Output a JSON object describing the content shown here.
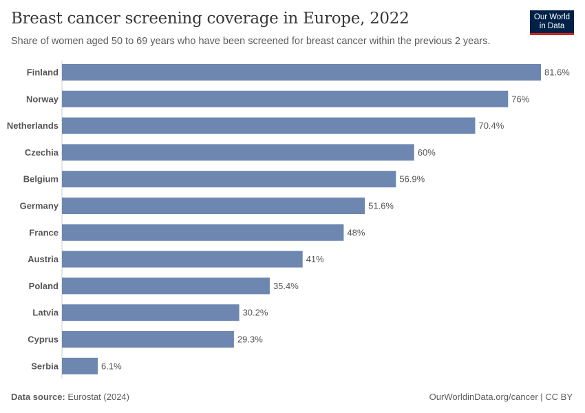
{
  "title": "Breast cancer screening coverage in Europe, 2022",
  "subtitle": "Share of women aged 50 to 69 years who have been screened for breast cancer within the previous 2 years.",
  "logo": {
    "line1": "Our World",
    "line2": "in Data"
  },
  "footer": {
    "source_label": "Data source:",
    "source": "Eurostat (2024)",
    "link": "OurWorldinData.org/cancer | CC BY"
  },
  "colors": {
    "bar": "#6d87b0",
    "logo_bg": "#002147",
    "logo_accent": "#ce261e"
  },
  "chart_data": {
    "type": "bar",
    "orientation": "horizontal",
    "categories": [
      "Finland",
      "Norway",
      "Netherlands",
      "Czechia",
      "Belgium",
      "Germany",
      "France",
      "Austria",
      "Poland",
      "Latvia",
      "Cyprus",
      "Serbia"
    ],
    "values": [
      81.6,
      76,
      70.4,
      60,
      56.9,
      51.6,
      48,
      41,
      35.4,
      30.2,
      29.3,
      6.1
    ],
    "data_labels": [
      "81.6%",
      "76%",
      "70.4%",
      "60%",
      "56.9%",
      "51.6%",
      "48%",
      "41%",
      "35.4%",
      "30.2%",
      "29.3%",
      "6.1%"
    ],
    "unit": "%",
    "xlim": [
      0,
      81.6
    ],
    "grid": false
  }
}
